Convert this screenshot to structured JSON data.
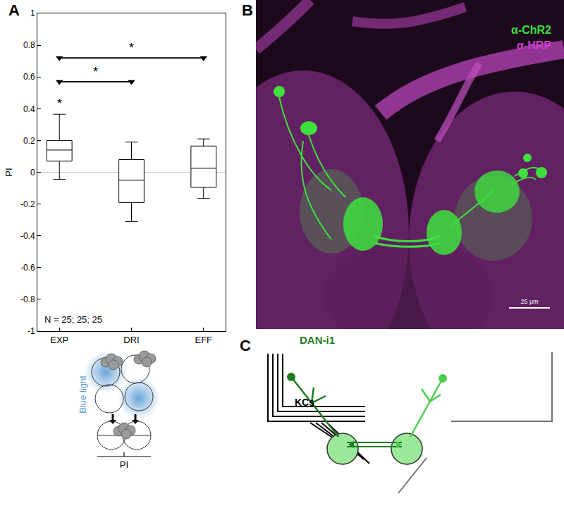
{
  "chart_data": {
    "type": "box",
    "y_label": "PI",
    "categories": [
      "EXP",
      "DRI",
      "EFF"
    ],
    "q1": [
      0.07,
      -0.19,
      -0.095
    ],
    "median": [
      0.14,
      -0.05,
      0.025
    ],
    "q3": [
      0.2,
      0.08,
      0.165
    ],
    "whisker_low": [
      -0.045,
      -0.31,
      -0.165
    ],
    "whisker_high": [
      0.365,
      0.19,
      0.21
    ],
    "color": "#000000",
    "ylim": [
      -1,
      1
    ],
    "yticks": [
      -1,
      -0.8,
      -0.6,
      -0.4,
      -0.2,
      0,
      0.2,
      0.4,
      0.6,
      0.8,
      1
    ],
    "zero_line": 0,
    "significance": [
      {
        "from": "EXP",
        "to": "DRI",
        "y": 0.57,
        "label": "*"
      },
      {
        "from": "EXP",
        "to": "EFF",
        "y": 0.72,
        "label": "*"
      },
      {
        "at": "EXP",
        "y": 0.38,
        "label": "*"
      }
    ],
    "annotations": [
      {
        "text": "N = 25; 25; 25"
      }
    ]
  },
  "figure": {
    "panel_labels": [
      "A",
      "B",
      "C"
    ],
    "pictogram": {
      "light_label": "Blue light",
      "measure_label": "PI"
    },
    "image": {
      "stain_labels": [
        "α-ChR2",
        "α-HRP"
      ],
      "scale_bar": "25 μm"
    },
    "diagram": {
      "neuron_label": "DAN-i1",
      "cell_label": "KCs"
    }
  }
}
